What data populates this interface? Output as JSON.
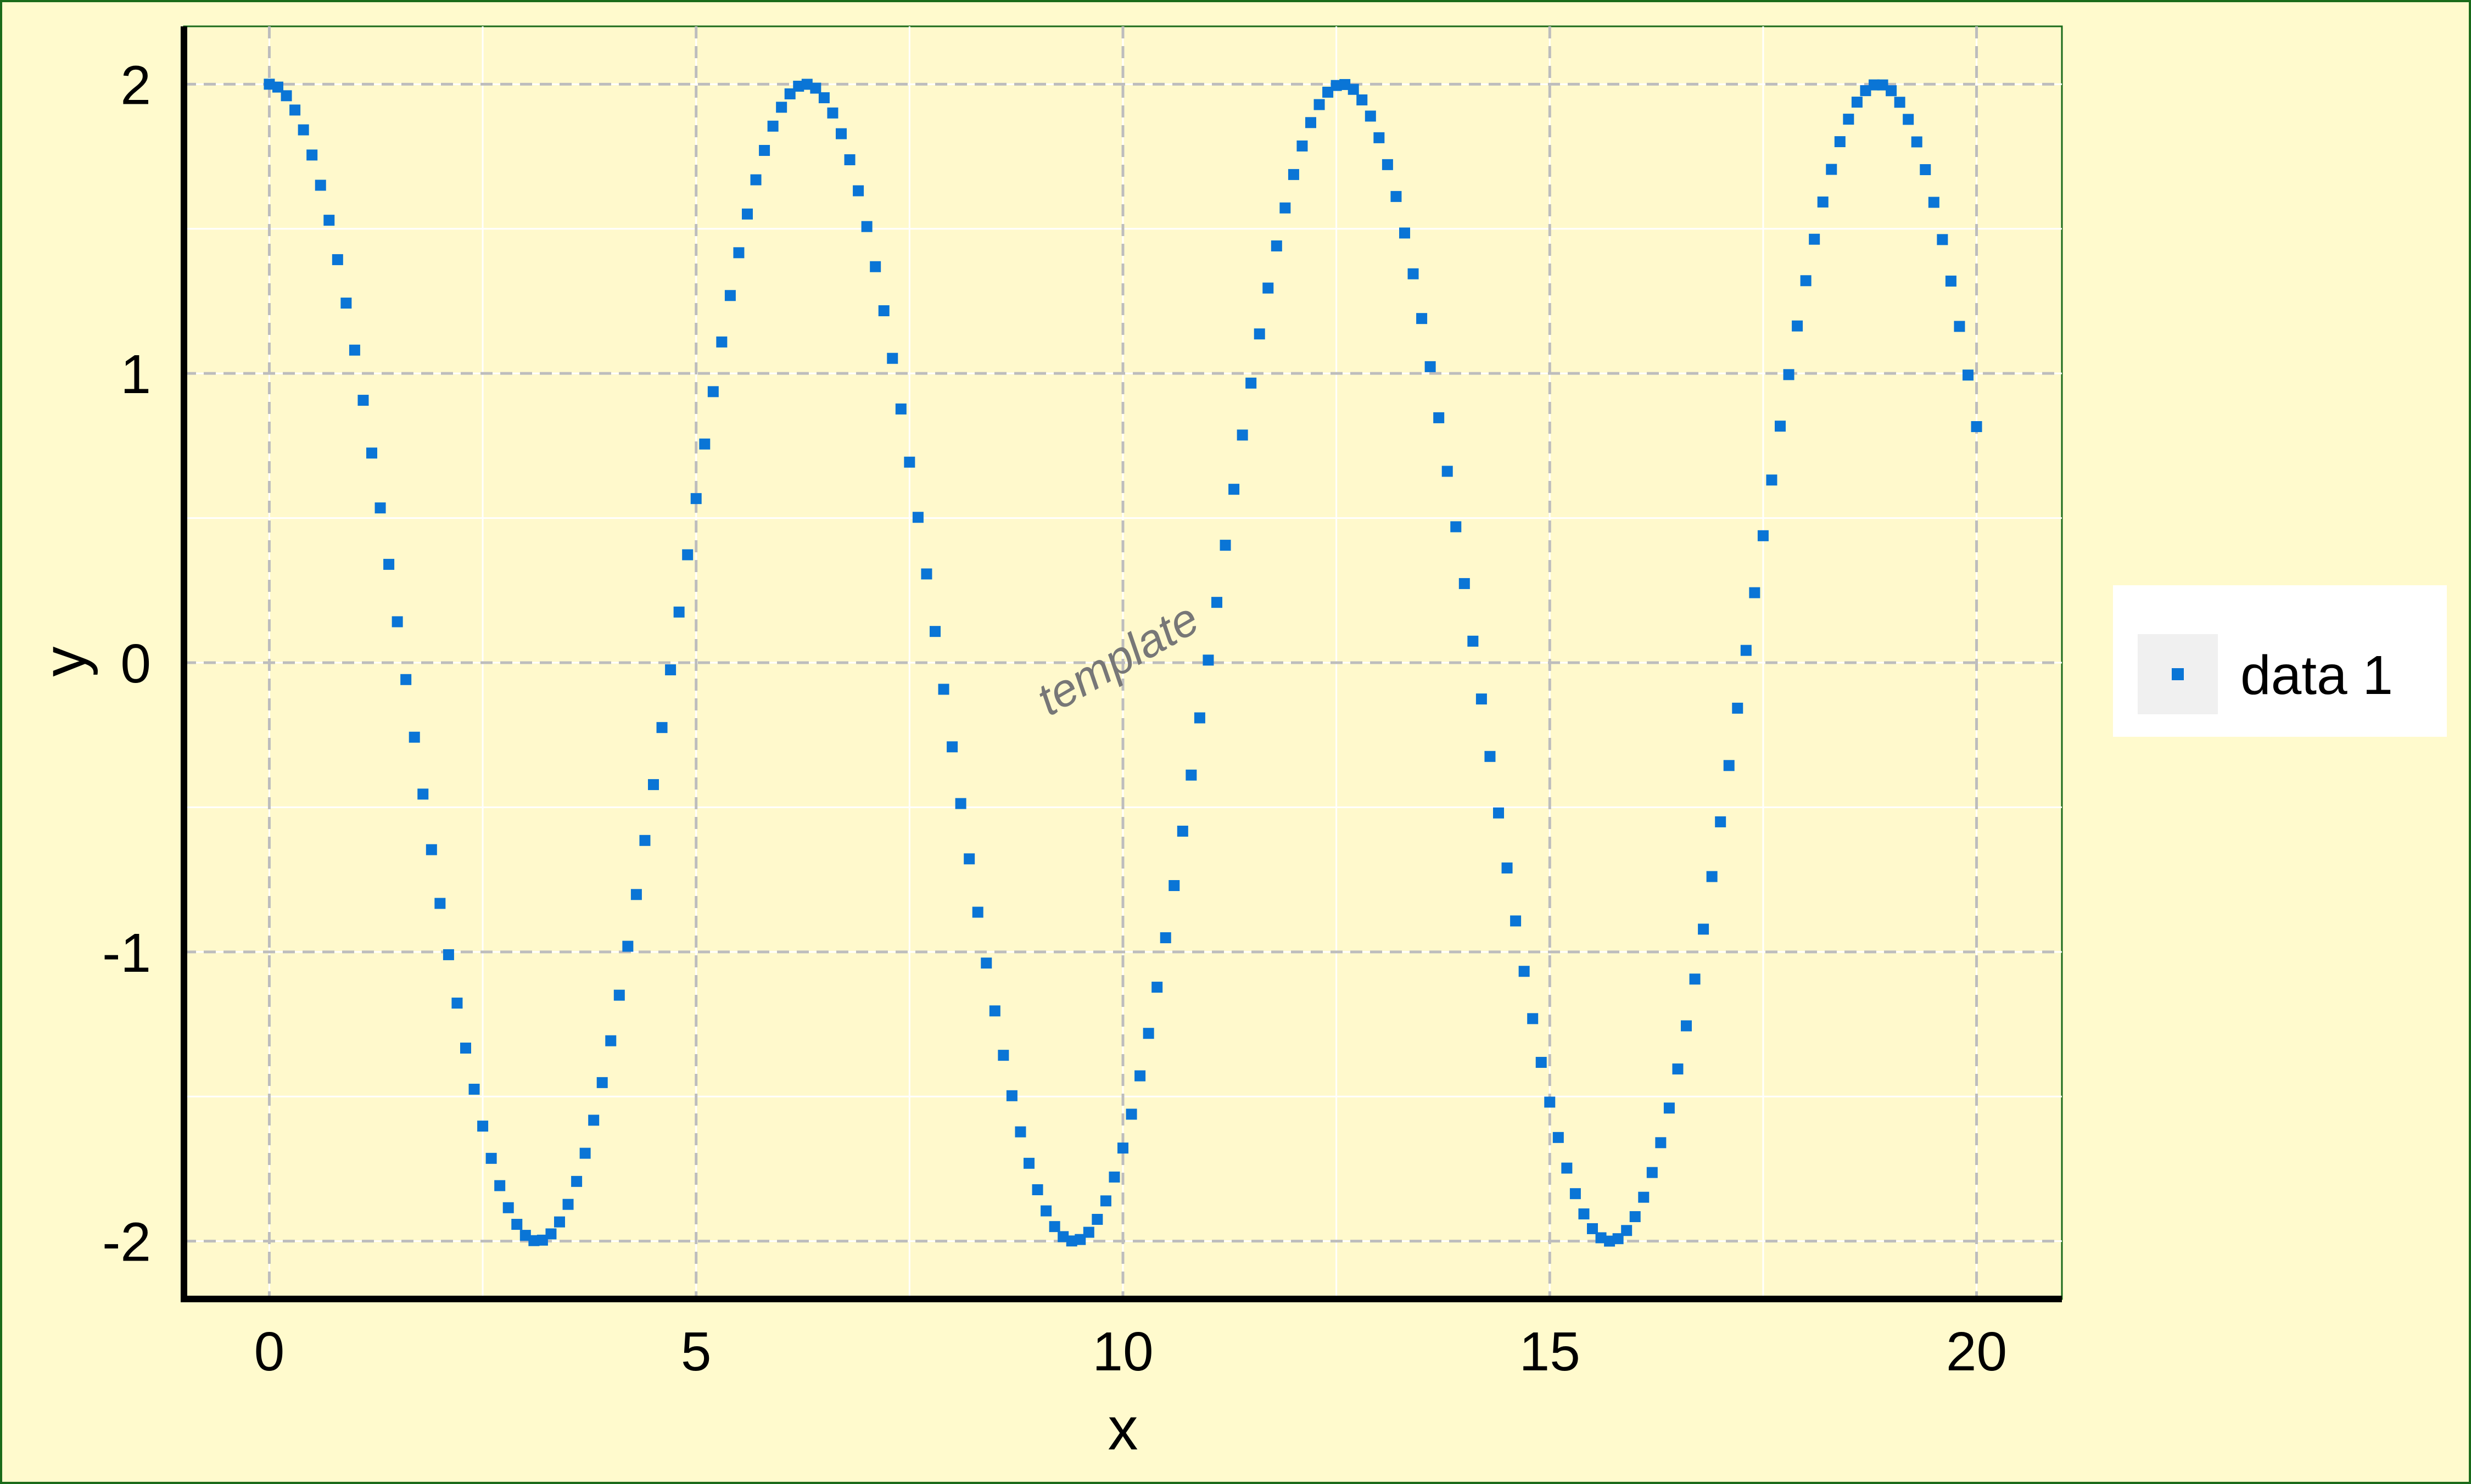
{
  "colors": {
    "figure_background": "#fffacd",
    "plot_background": "#fff9cc",
    "figure_border": "#1a6b1a",
    "major_grid": "#bdbdbd",
    "minor_grid": "#ffffff",
    "marker": "#0a75d6",
    "axis": "#000000",
    "watermark": "#777777"
  },
  "watermark": "template",
  "chart_data": {
    "type": "scatter",
    "title": "",
    "xlabel": "x",
    "ylabel": "y",
    "xlim": [
      -1,
      21
    ],
    "ylim": [
      -2.2,
      2.2
    ],
    "xticks": [
      0,
      5,
      10,
      15,
      20
    ],
    "yticks": [
      -2,
      -1,
      0,
      1,
      2
    ],
    "xtick_labels": [
      "0",
      "5",
      "10",
      "15",
      "20"
    ],
    "ytick_labels": [
      "-2",
      "-1",
      "0",
      "1",
      "2"
    ],
    "grid": {
      "major": true,
      "major_style": "dashed",
      "minor": true
    },
    "legend": {
      "position": "outside-right",
      "entries": [
        "data 1"
      ]
    },
    "series": [
      {
        "name": "data 1",
        "marker": "square",
        "function": "y = 2*cos(x)",
        "x_start": 0,
        "x_end": 20,
        "x_step": 0.1
      }
    ]
  }
}
